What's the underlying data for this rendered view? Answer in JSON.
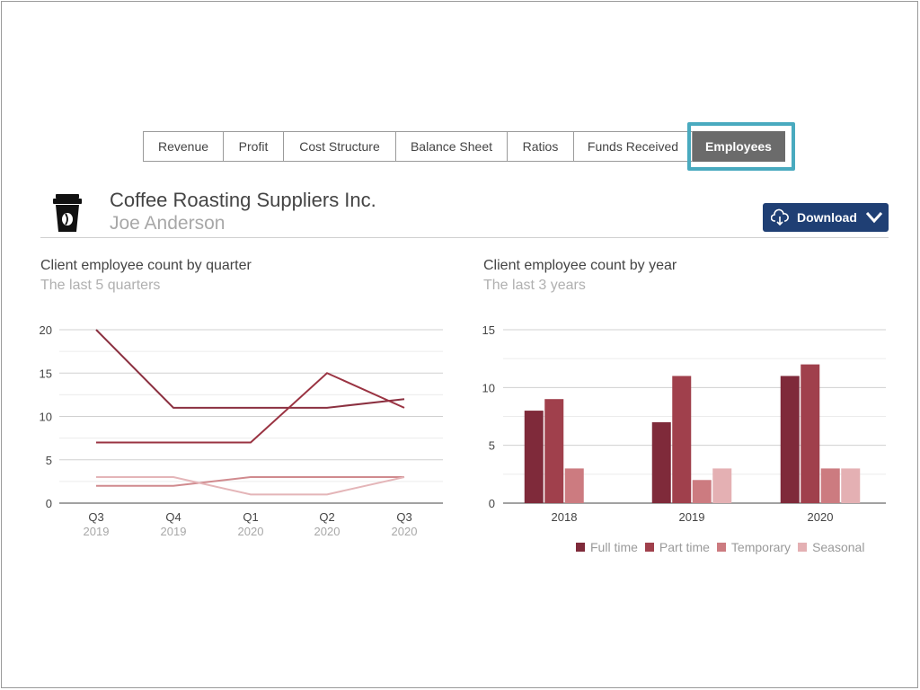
{
  "tabs": [
    {
      "label": "Revenue",
      "active": false
    },
    {
      "label": "Profit",
      "active": false
    },
    {
      "label": "Cost Structure",
      "active": false
    },
    {
      "label": "Balance Sheet",
      "active": false
    },
    {
      "label": "Ratios",
      "active": false
    },
    {
      "label": "Funds Received",
      "active": false
    },
    {
      "label": "Employees",
      "active": true
    }
  ],
  "header": {
    "company": "Coffee Roasting Suppliers Inc.",
    "person": "Joe Anderson",
    "icon": "coffee-cup-icon"
  },
  "download": {
    "label": "Download",
    "icon": "cloud-download-icon",
    "caret": "chevron-down-icon"
  },
  "colors": {
    "accent": "#1f3f74",
    "highlight": "#49aabf",
    "active_tab": "#6b6b6b"
  },
  "chart_data": [
    {
      "type": "line",
      "title": "Client employee count by quarter",
      "subtitle": "The last 5 quarters",
      "categories": [
        "Q3",
        "Q4",
        "Q1",
        "Q2",
        "Q3"
      ],
      "category_years": [
        "2019",
        "2019",
        "2020",
        "2020",
        "2020"
      ],
      "ylim": [
        0,
        20
      ],
      "yticks": [
        0,
        5,
        10,
        15,
        20
      ],
      "series": [
        {
          "values": [
            20,
            11,
            11,
            11,
            12
          ],
          "color": "#8b3040"
        },
        {
          "values": [
            7,
            7,
            7,
            15,
            11
          ],
          "color": "#9a3342"
        },
        {
          "values": [
            2,
            2,
            3,
            3,
            3
          ],
          "color": "#d08a8e"
        },
        {
          "values": [
            3,
            3,
            1,
            1,
            3
          ],
          "color": "#e4b5b8"
        }
      ]
    },
    {
      "type": "bar",
      "title": "Client employee count by year",
      "subtitle": "The last 3 years",
      "categories": [
        "2018",
        "2019",
        "2020"
      ],
      "ylim": [
        0,
        15
      ],
      "yticks": [
        0,
        5,
        10,
        15
      ],
      "series": [
        {
          "name": "Full time",
          "values": [
            8,
            7,
            11
          ],
          "color": "#7f2a3a"
        },
        {
          "name": "Part time",
          "values": [
            9,
            11,
            12
          ],
          "color": "#a0404c"
        },
        {
          "name": "Temporary",
          "values": [
            3,
            2,
            3
          ],
          "color": "#cc7b80"
        },
        {
          "name": "Seasonal",
          "values": [
            0,
            3,
            3
          ],
          "color": "#e4b0b3"
        }
      ]
    }
  ]
}
